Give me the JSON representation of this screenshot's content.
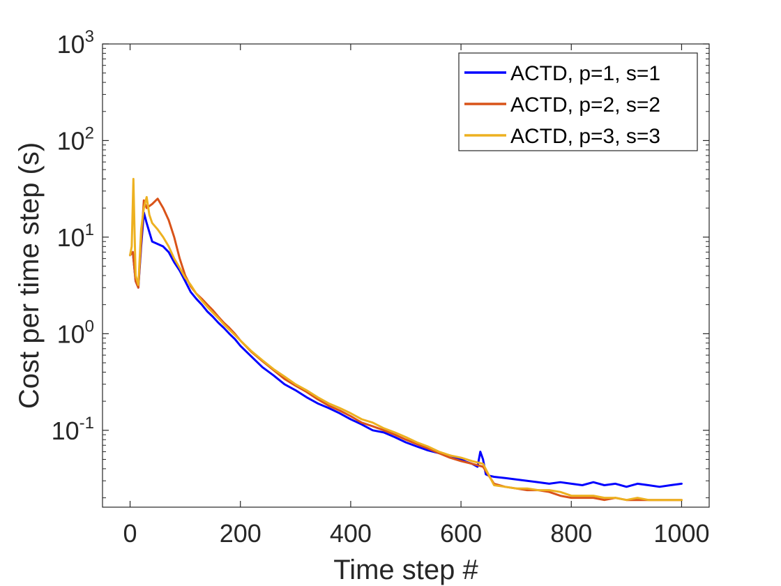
{
  "chart_data": {
    "type": "line",
    "title": "",
    "xlabel": "Time step #",
    "ylabel": "Cost per time step (s)",
    "xlim": [
      -50,
      1050
    ],
    "ylim": [
      0.016,
      1000
    ],
    "yscale": "log",
    "grid": false,
    "legend_position": "top-right",
    "x_ticks": [
      {
        "value": 0,
        "label": "0"
      },
      {
        "value": 200,
        "label": "200"
      },
      {
        "value": 400,
        "label": "400"
      },
      {
        "value": 600,
        "label": "600"
      },
      {
        "value": 800,
        "label": "800"
      },
      {
        "value": 1000,
        "label": "1000"
      }
    ],
    "y_ticks": [
      {
        "value": 1000,
        "base": "10",
        "exp": "3"
      },
      {
        "value": 100,
        "base": "10",
        "exp": "2"
      },
      {
        "value": 10,
        "base": "10",
        "exp": "1"
      },
      {
        "value": 1,
        "base": "10",
        "exp": "0"
      },
      {
        "value": 0.1,
        "base": "10",
        "exp": "-1"
      }
    ],
    "series": [
      {
        "name": "ACTD, p=1, s=1",
        "color": "#0000FF",
        "x": [
          0,
          5,
          10,
          15,
          20,
          25,
          30,
          40,
          50,
          60,
          70,
          80,
          90,
          100,
          110,
          120,
          130,
          140,
          150,
          160,
          170,
          180,
          190,
          200,
          220,
          240,
          260,
          280,
          300,
          320,
          340,
          360,
          380,
          400,
          420,
          440,
          460,
          480,
          500,
          520,
          540,
          560,
          580,
          600,
          610,
          620,
          630,
          635,
          640,
          645,
          650,
          660,
          680,
          700,
          720,
          740,
          760,
          780,
          800,
          820,
          840,
          860,
          880,
          900,
          920,
          940,
          960,
          980,
          1000
        ],
        "y": [
          6.5,
          7.0,
          3.5,
          3.0,
          8.0,
          18,
          14,
          9.0,
          8.5,
          8.0,
          7.0,
          5.5,
          4.5,
          3.5,
          2.7,
          2.3,
          2.0,
          1.7,
          1.5,
          1.3,
          1.15,
          1.0,
          0.88,
          0.75,
          0.58,
          0.45,
          0.37,
          0.3,
          0.26,
          0.22,
          0.19,
          0.17,
          0.15,
          0.13,
          0.115,
          0.1,
          0.095,
          0.085,
          0.075,
          0.068,
          0.062,
          0.058,
          0.055,
          0.05,
          0.047,
          0.045,
          0.042,
          0.06,
          0.05,
          0.035,
          0.034,
          0.033,
          0.032,
          0.031,
          0.03,
          0.029,
          0.028,
          0.029,
          0.028,
          0.027,
          0.029,
          0.027,
          0.028,
          0.026,
          0.028,
          0.027,
          0.026,
          0.027,
          0.028
        ]
      },
      {
        "name": "ACTD, p=2, s=2",
        "color": "#D95319",
        "x": [
          0,
          5,
          10,
          15,
          20,
          25,
          30,
          40,
          50,
          60,
          70,
          80,
          90,
          100,
          110,
          120,
          130,
          140,
          150,
          160,
          170,
          180,
          190,
          200,
          220,
          240,
          260,
          280,
          300,
          320,
          340,
          360,
          380,
          400,
          420,
          440,
          460,
          480,
          500,
          520,
          540,
          560,
          580,
          600,
          620,
          640,
          660,
          680,
          700,
          720,
          740,
          760,
          780,
          800,
          820,
          840,
          860,
          880,
          900,
          920,
          940,
          960,
          980,
          1000
        ],
        "y": [
          6.5,
          7.0,
          3.5,
          3.0,
          9.0,
          24,
          20,
          22,
          25,
          20,
          15,
          10,
          6.0,
          4.0,
          3.1,
          2.6,
          2.3,
          2.0,
          1.75,
          1.5,
          1.3,
          1.15,
          1.0,
          0.85,
          0.65,
          0.52,
          0.42,
          0.34,
          0.29,
          0.25,
          0.21,
          0.18,
          0.16,
          0.14,
          0.12,
          0.11,
          0.1,
          0.09,
          0.08,
          0.072,
          0.065,
          0.058,
          0.052,
          0.048,
          0.045,
          0.042,
          0.028,
          0.026,
          0.025,
          0.024,
          0.024,
          0.023,
          0.021,
          0.02,
          0.02,
          0.02,
          0.019,
          0.02,
          0.019,
          0.019,
          0.019,
          0.019,
          0.019,
          0.019
        ]
      },
      {
        "name": "ACTD, p=3, s=3",
        "color": "#EDB120",
        "x": [
          0,
          3,
          6,
          8,
          10,
          15,
          20,
          25,
          30,
          35,
          40,
          50,
          60,
          70,
          80,
          90,
          100,
          110,
          120,
          130,
          140,
          150,
          160,
          170,
          180,
          190,
          200,
          220,
          240,
          260,
          280,
          300,
          320,
          340,
          360,
          380,
          400,
          420,
          440,
          460,
          480,
          500,
          520,
          540,
          560,
          580,
          600,
          620,
          640,
          660,
          680,
          700,
          720,
          740,
          760,
          780,
          800,
          820,
          840,
          860,
          880,
          900,
          920,
          940,
          960,
          980,
          1000
        ],
        "y": [
          6.5,
          8.0,
          40,
          12,
          4.0,
          3.2,
          12,
          20,
          26,
          17,
          14,
          12,
          10,
          8.0,
          6.0,
          4.8,
          3.8,
          3.2,
          2.6,
          2.2,
          1.9,
          1.65,
          1.45,
          1.25,
          1.1,
          0.97,
          0.85,
          0.66,
          0.53,
          0.43,
          0.36,
          0.3,
          0.26,
          0.22,
          0.19,
          0.17,
          0.15,
          0.13,
          0.12,
          0.105,
          0.095,
          0.085,
          0.075,
          0.068,
          0.06,
          0.055,
          0.052,
          0.048,
          0.045,
          0.027,
          0.026,
          0.025,
          0.025,
          0.024,
          0.024,
          0.023,
          0.021,
          0.021,
          0.021,
          0.02,
          0.02,
          0.019,
          0.02,
          0.019,
          0.019,
          0.019,
          0.019
        ]
      }
    ]
  }
}
